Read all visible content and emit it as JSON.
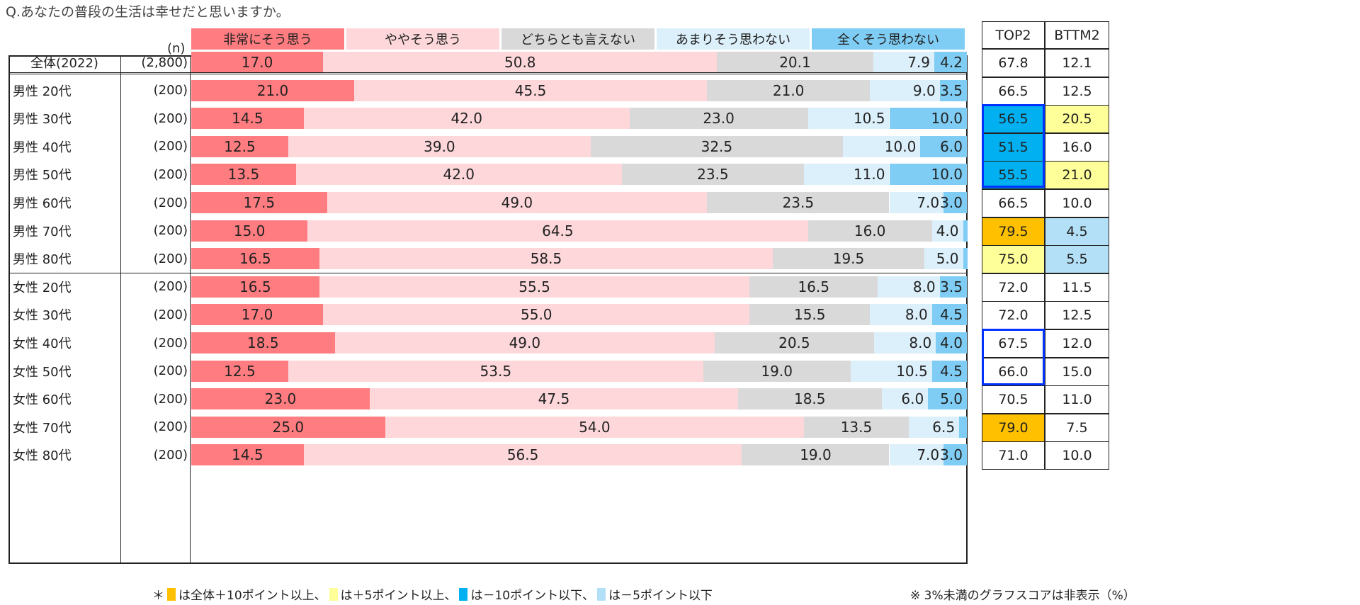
{
  "chart_data": {
    "type": "bar",
    "stacked": true,
    "orientation": "horizontal",
    "title": "Q.あなたの普段の生活は幸せだと思いますか。",
    "n_header": "(n)",
    "unit": "(%)",
    "series": [
      {
        "name": "非常にそう思う",
        "color": "#ff7c80"
      },
      {
        "name": "ややそう思う",
        "color": "#fdd7da"
      },
      {
        "name": "どちらとも言えない",
        "color": "#d9d9d9"
      },
      {
        "name": "あまりそう思わない",
        "color": "#dcf0fb"
      },
      {
        "name": "全くそう思わない",
        "color": "#7fcdf4"
      }
    ],
    "summary_headers": [
      "TOP2",
      "BTTM2"
    ],
    "rows": [
      {
        "label": "全体(2022)",
        "n": "(2,800)",
        "values": [
          17.0,
          50.8,
          20.1,
          7.9,
          4.2
        ],
        "top2": "67.8",
        "bttm2": "12.1"
      },
      {
        "label": "男性 20代",
        "n": "(200)",
        "values": [
          21.0,
          45.5,
          21.0,
          9.0,
          3.5
        ],
        "top2": "66.5",
        "bttm2": "12.5"
      },
      {
        "label": "男性 30代",
        "n": "(200)",
        "values": [
          14.5,
          42.0,
          23.0,
          10.5,
          10.0
        ],
        "top2": "56.5",
        "bttm2": "20.5",
        "top2_flag": "-10",
        "bttm2_flag": "+5"
      },
      {
        "label": "男性 40代",
        "n": "(200)",
        "values": [
          12.5,
          39.0,
          32.5,
          10.0,
          6.0
        ],
        "top2": "51.5",
        "bttm2": "16.0",
        "top2_flag": "-10"
      },
      {
        "label": "男性 50代",
        "n": "(200)",
        "values": [
          13.5,
          42.0,
          23.5,
          11.0,
          10.0
        ],
        "top2": "55.5",
        "bttm2": "21.0",
        "top2_flag": "-10",
        "bttm2_flag": "+5"
      },
      {
        "label": "男性 60代",
        "n": "(200)",
        "values": [
          17.5,
          49.0,
          23.5,
          7.0,
          3.0
        ],
        "top2": "66.5",
        "bttm2": "10.0"
      },
      {
        "label": "男性 70代",
        "n": "(200)",
        "values": [
          15.0,
          64.5,
          16.0,
          4.0,
          0.5
        ],
        "top2": "79.5",
        "bttm2": "4.5",
        "top2_flag": "+10",
        "bttm2_flag": "-5"
      },
      {
        "label": "男性 80代",
        "n": "(200)",
        "values": [
          16.5,
          58.5,
          19.5,
          5.0,
          0.5
        ],
        "top2": "75.0",
        "bttm2": "5.5",
        "top2_flag": "+5",
        "bttm2_flag": "-5"
      },
      {
        "label": "女性 20代",
        "n": "(200)",
        "values": [
          16.5,
          55.5,
          16.5,
          8.0,
          3.5
        ],
        "top2": "72.0",
        "bttm2": "11.5"
      },
      {
        "label": "女性 30代",
        "n": "(200)",
        "values": [
          17.0,
          55.0,
          15.5,
          8.0,
          4.5
        ],
        "top2": "72.0",
        "bttm2": "12.5"
      },
      {
        "label": "女性 40代",
        "n": "(200)",
        "values": [
          18.5,
          49.0,
          20.5,
          8.0,
          4.0
        ],
        "top2": "67.5",
        "bttm2": "12.0"
      },
      {
        "label": "女性 50代",
        "n": "(200)",
        "values": [
          12.5,
          53.5,
          19.0,
          10.5,
          4.5
        ],
        "top2": "66.0",
        "bttm2": "15.0"
      },
      {
        "label": "女性 60代",
        "n": "(200)",
        "values": [
          23.0,
          47.5,
          18.5,
          6.0,
          5.0
        ],
        "top2": "70.5",
        "bttm2": "11.0"
      },
      {
        "label": "女性 70代",
        "n": "(200)",
        "values": [
          25.0,
          54.0,
          13.5,
          6.5,
          1.0
        ],
        "top2": "79.0",
        "bttm2": "7.5",
        "top2_flag": "+10"
      },
      {
        "label": "女性 80代",
        "n": "(200)",
        "values": [
          14.5,
          56.5,
          19.0,
          7.0,
          3.0
        ],
        "top2": "71.0",
        "bttm2": "10.0"
      }
    ],
    "flag_colors": {
      "+10": "#ffc000",
      "+5": "#ffff99",
      "-10": "#00b0f0",
      "-5": "#b4e0f7"
    },
    "footnote": {
      "prefix": "＊",
      "items": [
        {
          "flag": "+10",
          "text": "は全体＋10ポイント以上、"
        },
        {
          "flag": "+5",
          "text": "は＋5ポイント以上、"
        },
        {
          "flag": "-10",
          "text": "は－10ポイント以下、"
        },
        {
          "flag": "-5",
          "text": "は－5ポイント以下"
        }
      ]
    },
    "note": "※ 3%未満のグラフスコアは非表示（%）"
  }
}
